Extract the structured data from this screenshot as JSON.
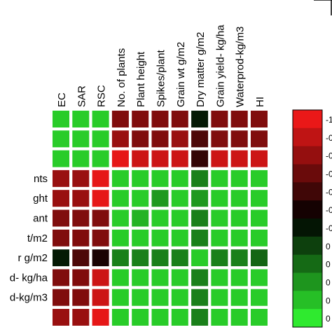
{
  "chart_data": {
    "type": "heatmap",
    "columns": [
      "EC",
      "SAR",
      "RSC",
      "No. of plants",
      "Plant height",
      "Spikes/plant",
      "Grain wt g/m2",
      "Dry matter g/m2",
      "Grain yield- kg/ha",
      "Waterprod-kg/m3",
      "HI"
    ],
    "rows": [
      "",
      "",
      "",
      "nts",
      "ght",
      "ant",
      "t/m2",
      "r g/m2",
      "d- kg/ha",
      "d-kg/m3",
      ""
    ],
    "values": [
      [
        -0.8,
        -0.8,
        -0.8,
        0.5,
        0.5,
        0.5,
        0.5,
        -0.1,
        0.5,
        0.5,
        0.5
      ],
      [
        -0.8,
        -0.8,
        -0.8,
        0.6,
        0.5,
        0.5,
        0.6,
        0.3,
        0.5,
        0.5,
        0.5
      ],
      [
        -0.8,
        -0.8,
        -0.8,
        0.9,
        0.8,
        0.8,
        0.8,
        0.2,
        0.8,
        0.8,
        0.8
      ],
      [
        0.6,
        0.6,
        0.9,
        -0.8,
        -0.8,
        -0.8,
        -0.8,
        -0.5,
        -0.8,
        -0.8,
        -0.8
      ],
      [
        0.6,
        0.6,
        0.9,
        -0.8,
        -0.8,
        -0.6,
        -0.8,
        -0.6,
        -0.8,
        -0.8,
        -0.8
      ],
      [
        0.5,
        0.5,
        0.5,
        -0.8,
        -0.7,
        -0.8,
        -0.8,
        -0.5,
        -0.8,
        -0.8,
        -0.8
      ],
      [
        0.5,
        0.5,
        0.5,
        -0.8,
        -0.8,
        -0.8,
        -0.8,
        -0.5,
        -0.8,
        -0.8,
        -0.8
      ],
      [
        -0.1,
        0.3,
        0.1,
        -0.5,
        -0.5,
        -0.5,
        -0.5,
        -0.8,
        -0.5,
        -0.5,
        -0.4
      ],
      [
        0.5,
        0.5,
        0.8,
        -0.8,
        -0.8,
        -0.8,
        -0.8,
        -0.5,
        -0.8,
        -0.8,
        -0.8
      ],
      [
        0.5,
        0.5,
        0.8,
        -0.8,
        -0.8,
        -0.8,
        -0.8,
        -0.5,
        -0.8,
        -0.8,
        -0.8
      ],
      [
        0.6,
        0.6,
        0.9,
        -0.8,
        -0.8,
        -0.8,
        -0.8,
        -0.5,
        -0.8,
        -0.8,
        -0.8
      ]
    ],
    "colorscale": {
      "positive": "#ff1a1a",
      "mid": "#000000",
      "negative": "#33ff33"
    },
    "legend": {
      "placement": "right",
      "labels": [
        "-1",
        "-0",
        "-0",
        "-0",
        "-0",
        "-0",
        "-0",
        "0",
        "0",
        "0",
        "0",
        "0"
      ]
    }
  }
}
